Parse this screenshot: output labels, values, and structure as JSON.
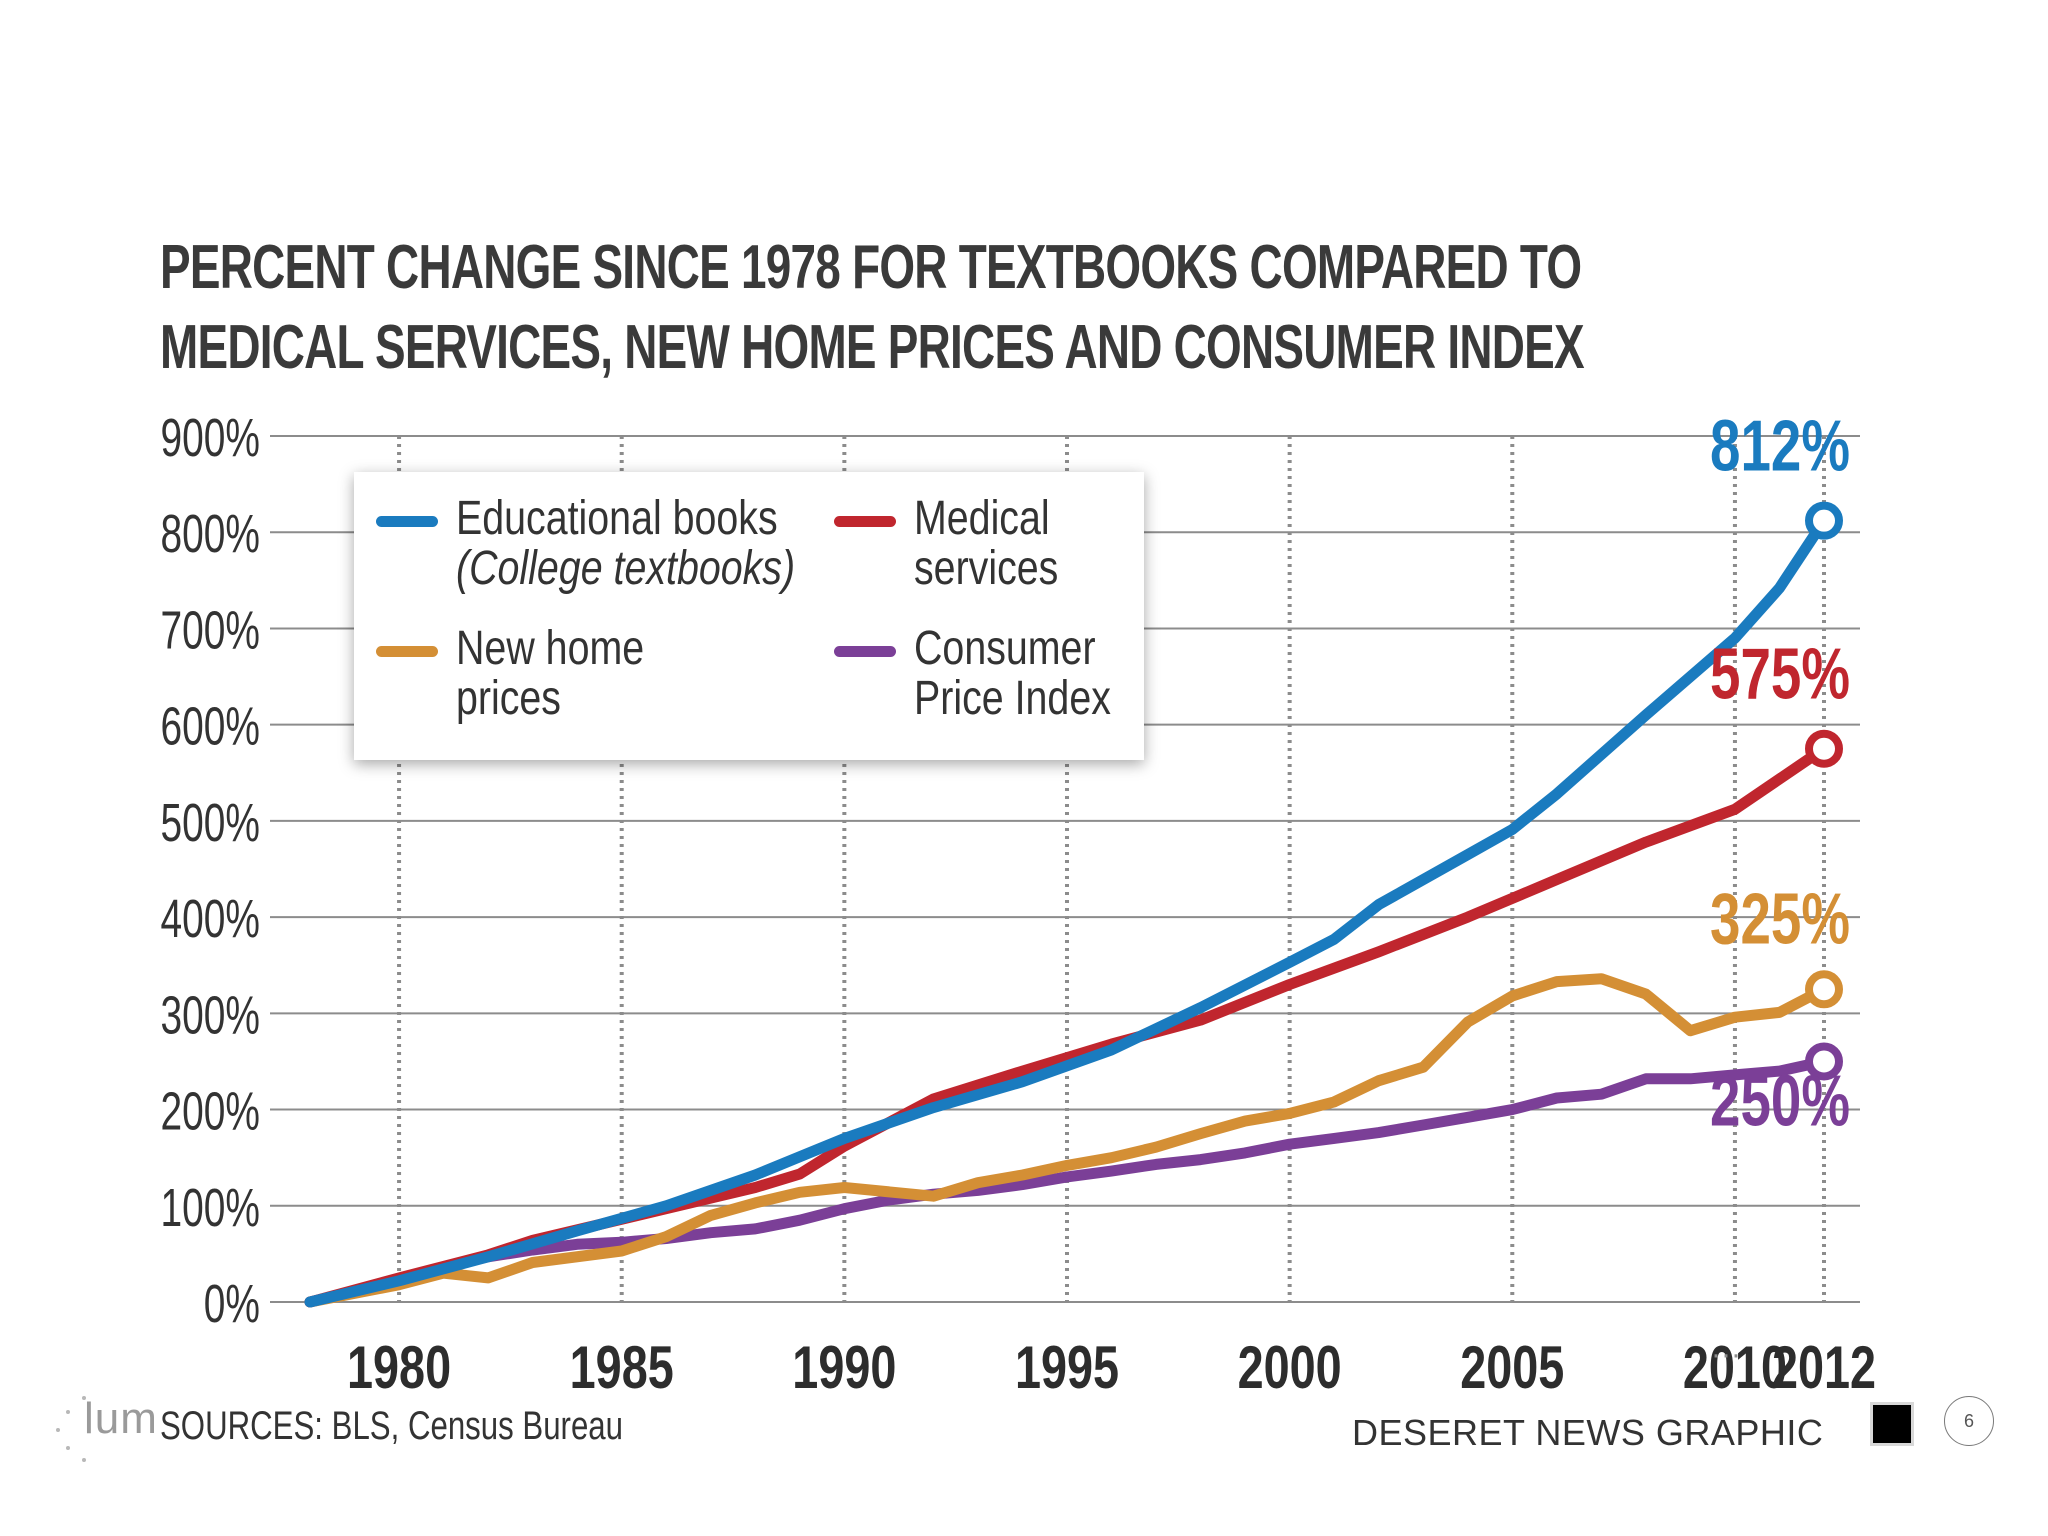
{
  "title_lines": [
    "PERCENT CHANGE SINCE 1978 FOR TEXTBOOKS COMPARED TO",
    "MEDICAL SERVICES, NEW HOME PRICES AND CONSUMER INDEX"
  ],
  "legend": {
    "textbooks_line1": "Educational books",
    "textbooks_line2": "(College textbooks)",
    "medical_line1": "Medical",
    "medical_line2": "services",
    "homes_line1": "New home",
    "homes_line2": "prices",
    "cpi_line1": "Consumer",
    "cpi_line2": "Price Index"
  },
  "footer": {
    "sources": "SOURCES: BLS, Census Bureau",
    "credit": "DESERET NEWS GRAPHIC",
    "logo_text": "lum",
    "page_number": "6"
  },
  "chart_data": {
    "type": "line",
    "title": "PERCENT CHANGE SINCE 1978 FOR TEXTBOOKS COMPARED TO MEDICAL SERVICES, NEW HOME PRICES AND CONSUMER INDEX",
    "xlabel": "",
    "ylabel": "",
    "xlim": [
      1978,
      2012
    ],
    "ylim": [
      0,
      900
    ],
    "x_ticks": [
      1980,
      1985,
      1990,
      1995,
      2000,
      2005,
      2010,
      2012
    ],
    "y_ticks": [
      0,
      100,
      200,
      300,
      400,
      500,
      600,
      700,
      800,
      900
    ],
    "y_tick_labels": [
      "0%",
      "100%",
      "200%",
      "300%",
      "400%",
      "500%",
      "600%",
      "700%",
      "800%",
      "900%"
    ],
    "grid": true,
    "legend_position": "top-left",
    "series": [
      {
        "name": "Educational books (College textbooks)",
        "color": "#1a7bbf",
        "end_label": "812%",
        "points": [
          [
            1978,
            0
          ],
          [
            1980,
            22
          ],
          [
            1982,
            47
          ],
          [
            1984,
            74
          ],
          [
            1986,
            100
          ],
          [
            1988,
            132
          ],
          [
            1990,
            170
          ],
          [
            1992,
            202
          ],
          [
            1994,
            229
          ],
          [
            1996,
            262
          ],
          [
            1998,
            306
          ],
          [
            2000,
            353
          ],
          [
            2001,
            377
          ],
          [
            2002,
            413
          ],
          [
            2004,
            465
          ],
          [
            2005,
            491
          ],
          [
            2006,
            528
          ],
          [
            2008,
            610
          ],
          [
            2010,
            690
          ],
          [
            2011,
            742
          ],
          [
            2012,
            812
          ]
        ]
      },
      {
        "name": "Medical services",
        "color": "#c0262e",
        "end_label": "575%",
        "points": [
          [
            1978,
            0
          ],
          [
            1980,
            25
          ],
          [
            1982,
            49
          ],
          [
            1983,
            64
          ],
          [
            1986,
            97
          ],
          [
            1988,
            119
          ],
          [
            1989,
            133
          ],
          [
            1990,
            162
          ],
          [
            1992,
            211
          ],
          [
            1994,
            240
          ],
          [
            1996,
            268
          ],
          [
            1998,
            293
          ],
          [
            2000,
            330
          ],
          [
            2002,
            364
          ],
          [
            2004,
            400
          ],
          [
            2006,
            439
          ],
          [
            2008,
            478
          ],
          [
            2010,
            512
          ],
          [
            2012,
            575
          ]
        ]
      },
      {
        "name": "New home prices",
        "color": "#d48f35",
        "end_label": "325%",
        "points": [
          [
            1978,
            0
          ],
          [
            1980,
            18
          ],
          [
            1981,
            30
          ],
          [
            1982,
            25
          ],
          [
            1983,
            41
          ],
          [
            1985,
            53
          ],
          [
            1986,
            68
          ],
          [
            1987,
            90
          ],
          [
            1988,
            103
          ],
          [
            1989,
            114
          ],
          [
            1990,
            119
          ],
          [
            1992,
            110
          ],
          [
            1993,
            124
          ],
          [
            1994,
            132
          ],
          [
            1995,
            142
          ],
          [
            1996,
            150
          ],
          [
            1997,
            161
          ],
          [
            1998,
            175
          ],
          [
            1999,
            188
          ],
          [
            2000,
            196
          ],
          [
            2001,
            208
          ],
          [
            2002,
            230
          ],
          [
            2003,
            244
          ],
          [
            2004,
            291
          ],
          [
            2005,
            318
          ],
          [
            2006,
            333
          ],
          [
            2007,
            336
          ],
          [
            2008,
            320
          ],
          [
            2009,
            282
          ],
          [
            2010,
            296
          ],
          [
            2011,
            301
          ],
          [
            2012,
            325
          ]
        ]
      },
      {
        "name": "Consumer Price Index",
        "color": "#7b3f97",
        "end_label": "250%",
        "points": [
          [
            1978,
            0
          ],
          [
            1980,
            22
          ],
          [
            1981,
            36
          ],
          [
            1982,
            47
          ],
          [
            1983,
            54
          ],
          [
            1984,
            60
          ],
          [
            1985,
            62
          ],
          [
            1986,
            66
          ],
          [
            1987,
            72
          ],
          [
            1988,
            76
          ],
          [
            1989,
            85
          ],
          [
            1990,
            97
          ],
          [
            1991,
            106
          ],
          [
            1992,
            112
          ],
          [
            1993,
            116
          ],
          [
            1994,
            122
          ],
          [
            1995,
            130
          ],
          [
            1996,
            136
          ],
          [
            1997,
            143
          ],
          [
            1998,
            148
          ],
          [
            1999,
            155
          ],
          [
            2000,
            164
          ],
          [
            2001,
            170
          ],
          [
            2002,
            176
          ],
          [
            2003,
            184
          ],
          [
            2004,
            192
          ],
          [
            2005,
            200
          ],
          [
            2006,
            212
          ],
          [
            2007,
            216
          ],
          [
            2008,
            232
          ],
          [
            2009,
            232
          ],
          [
            2010,
            236
          ],
          [
            2011,
            240
          ],
          [
            2012,
            250
          ]
        ]
      }
    ]
  }
}
